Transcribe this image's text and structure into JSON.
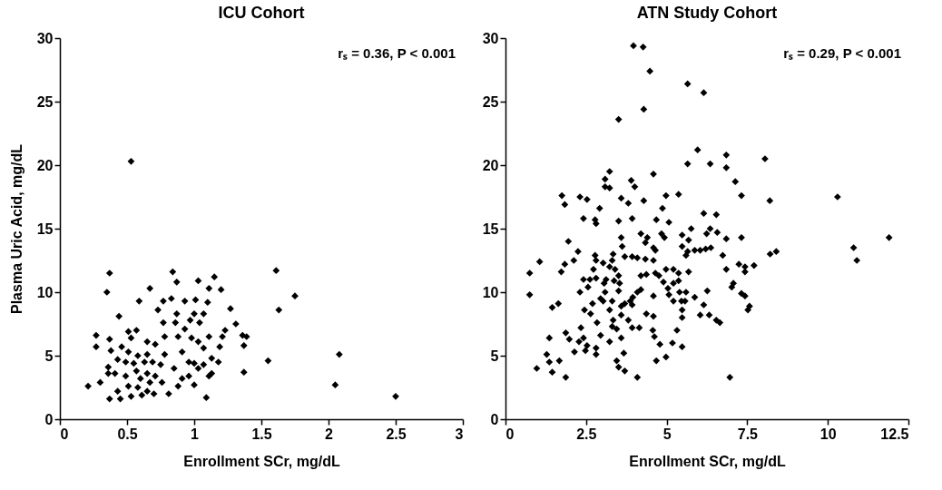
{
  "chart_data": [
    {
      "type": "scatter",
      "title": "ICU Cohort",
      "xlabel": "Enrollment SCr, mg/dL",
      "ylabel": "Plasma Uric Acid, mg/dL",
      "annotations": [
        "rₛ = 0.36, P < 0.001"
      ],
      "marker": "diamond",
      "color": "#000000",
      "xlim": [
        0,
        3
      ],
      "xticks": [
        0,
        0.5,
        1,
        1.5,
        2,
        2.5,
        3
      ],
      "ylim": [
        0,
        30
      ],
      "yticks": [
        0,
        5,
        10,
        15,
        20,
        25,
        30
      ],
      "x": [
        0.53,
        0.37,
        0.35,
        0.84,
        0.87,
        1.03,
        1.15,
        1.11,
        1.2,
        0.67,
        0.59,
        0.44,
        0.27,
        0.27,
        0.21,
        0.3,
        0.37,
        0.45,
        0.53,
        0.81,
        1.09,
        1.37,
        1.37,
        1.27,
        1.31,
        1.36,
        1.39,
        1.18,
        1.11,
        1.0,
        0.88,
        1.61,
        1.75,
        1.63,
        1.55,
        2.08,
        2.05,
        2.5,
        0.77,
        0.83,
        0.93,
        1.01,
        1.1,
        0.73,
        0.87,
        1.0,
        1.07,
        0.77,
        0.86,
        0.97,
        1.04,
        0.93,
        1.23,
        0.57,
        0.51,
        0.53,
        0.37,
        0.65,
        0.71,
        0.78,
        0.88,
        0.98,
        1.11,
        1.21,
        1.19,
        0.38,
        0.46,
        0.51,
        0.58,
        0.65,
        0.78,
        0.91,
        1.07,
        1.03,
        0.43,
        0.49,
        0.55,
        0.63,
        0.69,
        0.75,
        0.85,
        0.96,
        1.0,
        1.07,
        0.36,
        0.36,
        0.41,
        0.49,
        0.57,
        0.65,
        0.71,
        0.6,
        0.67,
        0.76,
        0.51,
        0.58,
        0.65,
        0.7,
        0.43,
        0.61,
        0.91,
        1.03,
        1.13,
        1.13,
        0.96
      ],
      "values": [
        20.3,
        11.5,
        10.0,
        11.6,
        10.8,
        10.9,
        11.2,
        10.3,
        10.2,
        10.3,
        9.3,
        8.1,
        6.6,
        5.7,
        2.6,
        2.9,
        1.6,
        1.6,
        1.8,
        2.0,
        1.7,
        3.7,
        5.8,
        8.7,
        7.5,
        6.6,
        6.5,
        4.5,
        3.4,
        2.7,
        2.6,
        11.7,
        9.7,
        8.6,
        4.6,
        5.1,
        2.7,
        1.8,
        9.3,
        9.5,
        9.3,
        9.4,
        9.2,
        8.6,
        8.3,
        8.3,
        8.3,
        7.6,
        7.6,
        7.8,
        7.6,
        7.1,
        7.0,
        7.0,
        6.9,
        6.4,
        6.3,
        6.1,
        5.9,
        6.5,
        6.5,
        6.4,
        6.5,
        6.5,
        5.7,
        5.4,
        5.7,
        5.3,
        5.0,
        5.1,
        5.1,
        5.3,
        5.6,
        6.1,
        4.7,
        4.5,
        4.4,
        4.5,
        4.5,
        4.3,
        4.0,
        4.5,
        4.4,
        4.3,
        4.1,
        3.6,
        3.6,
        3.4,
        3.8,
        3.6,
        3.4,
        3.2,
        2.9,
        2.9,
        2.6,
        2.5,
        2.2,
        2.0,
        2.2,
        1.9,
        3.2,
        4.0,
        3.6,
        4.8,
        3.4
      ]
    },
    {
      "type": "scatter",
      "title": "ATN Study Cohort",
      "xlabel": "Enrollment SCr, mg/dL",
      "annotations": [
        "rₛ = 0.29, P < 0.001"
      ],
      "marker": "diamond",
      "color": "#000000",
      "xlim": [
        0,
        12.5
      ],
      "xticks": [
        0,
        2.5,
        5,
        7.5,
        10,
        12.5
      ],
      "ylim": [
        0,
        30
      ],
      "yticks": [
        0,
        5,
        10,
        15,
        20,
        25,
        30
      ],
      "x": [
        3.97,
        4.27,
        4.48,
        5.65,
        6.15,
        4.29,
        3.51,
        5.96,
        5.65,
        6.35,
        6.85,
        6.85,
        8.05,
        7.13,
        7.32,
        8.2,
        6.15,
        6.54,
        3.23,
        3.09,
        3.09,
        3.23,
        3.9,
        4.01,
        4.59,
        1.75,
        1.84,
        2.31,
        2.53,
        2.92,
        3.59,
        3.81,
        4.29,
        4.98,
        5.37,
        4.87,
        2.42,
        2.78,
        3.51,
        3.93,
        4.68,
        5.07,
        2.81,
        1.95,
        2.25,
        1.06,
        0.75,
        0.75,
        1.73,
        1.84,
        2.12,
        1.45,
        1.64,
        1.36,
        1.28,
        0.97,
        1.36,
        1.45,
        1.67,
        1.87,
        1.87,
        1.98,
        2.14,
        2.34,
        2.28,
        2.42,
        2.53,
        2.48,
        2.81,
        2.81,
        2.31,
        2.42,
        2.62,
        2.56,
        2.7,
        2.45,
        2.64,
        2.84,
        2.95,
        3.23,
        2.78,
        2.81,
        2.73,
        3.03,
        3.34,
        3.31,
        3.23,
        2.81,
        3.06,
        3.12,
        3.4,
        3.51,
        3.37,
        3.54,
        3.51,
        3.09,
        2.95,
        3.31,
        3.03,
        3.23,
        3.34,
        3.59,
        3.59,
        3.7,
        3.87,
        3.95,
        4.09,
        4.2,
        3.93,
        3.81,
        3.93,
        4.15,
        3.31,
        3.45,
        3.59,
        3.67,
        3.45,
        3.51,
        3.7,
        4.09,
        3.7,
        3.93,
        4.09,
        4.34,
        4.59,
        3.62,
        3.59,
        4.2,
        4.4,
        4.34,
        4.59,
        4.65,
        4.84,
        4.93,
        4.2,
        4.37,
        4.65,
        4.76,
        4.98,
        5.21,
        5.37,
        4.9,
        5.04,
        5.21,
        5.37,
        5.07,
        5.21,
        5.4,
        5.46,
        5.57,
        5.6,
        4.59,
        4.37,
        4.59,
        4.57,
        4.62,
        4.79,
        4.68,
        4.98,
        5.18,
        5.32,
        5.48,
        5.48,
        5.48,
        5.68,
        5.87,
        6.15,
        6.26,
        6.04,
        6.32,
        6.54,
        6.65,
        5.48,
        5.68,
        5.48,
        5.76,
        5.6,
        5.65,
        5.87,
        6.04,
        6.21,
        6.37,
        6.24,
        6.35,
        6.57,
        6.85,
        6.74,
        6.85,
        7.32,
        7.24,
        7.43,
        7.43,
        7.71,
        7.07,
        7.02,
        7.32,
        7.43,
        7.57,
        7.52,
        8.21,
        6.96,
        10.3,
        10.8,
        10.9,
        11.9,
        8.4
      ],
      "values": [
        29.4,
        29.3,
        27.4,
        26.4,
        25.7,
        24.4,
        23.6,
        21.2,
        20.1,
        20.1,
        20.8,
        19.8,
        20.5,
        18.7,
        17.6,
        17.2,
        16.2,
        16.1,
        19.5,
        18.9,
        18.3,
        18.2,
        18.8,
        18.3,
        19.3,
        17.6,
        16.9,
        17.5,
        17.3,
        16.6,
        17.4,
        17.0,
        17.2,
        17.6,
        17.7,
        16.6,
        15.8,
        15.7,
        15.6,
        15.8,
        15.7,
        15.5,
        15.4,
        14.0,
        13.2,
        12.4,
        11.5,
        9.8,
        11.6,
        12.2,
        12.5,
        8.8,
        9.1,
        6.4,
        5.1,
        4.0,
        4.5,
        3.7,
        4.6,
        3.3,
        6.8,
        6.3,
        5.3,
        7.2,
        6.1,
        6.4,
        5.8,
        5.4,
        5.6,
        5.1,
        10.0,
        11.0,
        11.0,
        10.4,
        9.1,
        8.6,
        8.3,
        7.6,
        6.6,
        6.1,
        12.9,
        12.5,
        11.8,
        12.3,
        13.0,
        12.5,
        12.0,
        11.1,
        10.7,
        11.0,
        11.8,
        11.3,
        10.9,
        10.7,
        10.1,
        10.0,
        9.5,
        9.3,
        9.3,
        8.6,
        7.8,
        8.2,
        8.9,
        9.1,
        9.3,
        9.6,
        10.0,
        10.2,
        9.0,
        7.8,
        7.2,
        7.2,
        7.3,
        7.1,
        6.4,
        5.2,
        4.6,
        4.1,
        3.8,
        3.3,
        12.8,
        12.8,
        12.7,
        12.6,
        12.5,
        13.6,
        14.3,
        14.6,
        14.3,
        13.9,
        13.5,
        13.3,
        14.6,
        14.3,
        11.3,
        11.4,
        11.5,
        11.3,
        11.8,
        11.8,
        11.5,
        10.8,
        10.3,
        10.7,
        10.9,
        9.8,
        9.3,
        10.0,
        9.3,
        9.3,
        10.0,
        9.7,
        8.3,
        8.1,
        7.0,
        6.5,
        5.9,
        4.6,
        4.9,
        6.0,
        7.0,
        5.7,
        8.6,
        8.0,
        11.6,
        9.6,
        9.0,
        10.1,
        8.2,
        8.2,
        7.8,
        7.6,
        14.5,
        14.1,
        13.6,
        15.0,
        12.9,
        13.2,
        13.3,
        13.3,
        13.4,
        13.5,
        14.6,
        15.0,
        14.7,
        14.2,
        12.9,
        11.8,
        14.3,
        12.2,
        12.0,
        11.6,
        12.1,
        10.7,
        10.4,
        9.9,
        9.7,
        8.9,
        8.6,
        13.0,
        3.3,
        17.5,
        13.5,
        12.5,
        14.3,
        13.2
      ]
    }
  ]
}
